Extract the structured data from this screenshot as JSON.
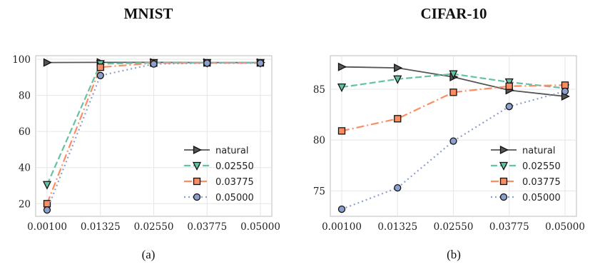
{
  "chart_data": [
    {
      "type": "line",
      "title": "MNIST",
      "caption": "(a)",
      "x": [
        "0.00100",
        "0.01325",
        "0.02550",
        "0.03775",
        "0.05000"
      ],
      "ylim": [
        13,
        102
      ],
      "yticks": [
        20,
        40,
        60,
        80,
        100
      ],
      "grid": true,
      "legend_position": "bottom-right",
      "series": [
        {
          "name": "natural",
          "values": [
            98.2,
            98.3,
            98.3,
            98.2,
            98.2
          ]
        },
        {
          "name": "0.02550",
          "values": [
            30.5,
            97.5,
            98.1,
            98.1,
            98.1
          ]
        },
        {
          "name": "0.03775",
          "values": [
            20.0,
            95.6,
            97.9,
            98.0,
            98.0
          ]
        },
        {
          "name": "0.05000",
          "values": [
            16.5,
            91.0,
            97.4,
            97.9,
            97.9
          ]
        }
      ]
    },
    {
      "type": "line",
      "title": "CIFAR-10",
      "caption": "(b)",
      "x": [
        "0.00100",
        "0.01325",
        "0.02550",
        "0.03775",
        "0.05000"
      ],
      "ylim": [
        72.5,
        88.3
      ],
      "yticks": [
        75,
        80,
        85
      ],
      "grid": true,
      "legend_position": "bottom-right",
      "series": [
        {
          "name": "natural",
          "values": [
            87.2,
            87.1,
            86.2,
            84.9,
            84.3
          ]
        },
        {
          "name": "0.02550",
          "values": [
            85.2,
            86.0,
            86.5,
            85.7,
            85.1
          ]
        },
        {
          "name": "0.03775",
          "values": [
            80.9,
            82.1,
            84.7,
            85.3,
            85.4
          ]
        },
        {
          "name": "0.05000",
          "values": [
            73.2,
            75.3,
            79.9,
            83.3,
            84.8
          ]
        }
      ]
    }
  ],
  "styles": {
    "colors": [
      "#555555",
      "#66c2a5",
      "#fc8d62",
      "#8da0cb"
    ],
    "markers": [
      "triangle-right",
      "triangle-down",
      "square",
      "circle"
    ]
  }
}
